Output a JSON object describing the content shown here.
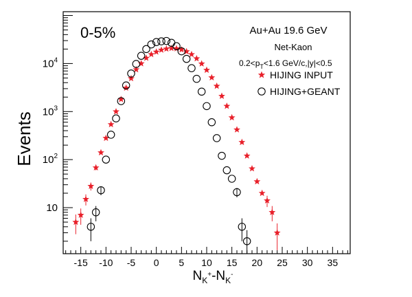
{
  "chart_data": {
    "type": "scatter",
    "title": "",
    "centrality": "0-5%",
    "annotations": {
      "system": "Au+Au 19.6 GeV",
      "particle": "Net-Kaon",
      "cuts_pre": "0.2<p",
      "cuts_sub": "T",
      "cuts_post": "<1.6 GeV/c,|y|<0.5"
    },
    "xlabel": {
      "base": "N",
      "sub1": "K",
      "sup1": "+",
      "mid": "-N",
      "sub2": "K",
      "sup2": "-"
    },
    "ylabel": "Events",
    "xlim": [
      -18.5,
      38.5
    ],
    "ylim": [
      1.1,
      120000
    ],
    "yscale": "log",
    "x_ticks": [
      -15,
      -10,
      -5,
      0,
      5,
      10,
      15,
      20,
      25,
      30,
      35
    ],
    "x_tick_labels": [
      "-15",
      "-10",
      "-5",
      "0",
      "5",
      "10",
      "15",
      "20",
      "25",
      "30",
      "35"
    ],
    "y_ticks": [
      {
        "value": 10,
        "base": "10",
        "exp": ""
      },
      {
        "value": 100,
        "base": "10",
        "exp": "2"
      },
      {
        "value": 1000,
        "base": "10",
        "exp": "3"
      },
      {
        "value": 10000,
        "base": "10",
        "exp": "4"
      }
    ],
    "legend_position": "top-right",
    "series": [
      {
        "name": "HIJING INPUT",
        "marker": "star",
        "color": "#e8202a",
        "points": [
          {
            "x": -16,
            "y": 5,
            "err": 2.2
          },
          {
            "x": -15,
            "y": 7,
            "err": 2.6
          },
          {
            "x": -14,
            "y": 15,
            "err": 3.9
          },
          {
            "x": -13,
            "y": 28,
            "err": 5.3
          },
          {
            "x": -12,
            "y": 68,
            "err": 8
          },
          {
            "x": -11,
            "y": 140
          },
          {
            "x": -10,
            "y": 280
          },
          {
            "x": -9,
            "y": 540
          },
          {
            "x": -8,
            "y": 1000
          },
          {
            "x": -7,
            "y": 1800
          },
          {
            "x": -6,
            "y": 3100
          },
          {
            "x": -5,
            "y": 4900
          },
          {
            "x": -4,
            "y": 7500
          },
          {
            "x": -3,
            "y": 10000
          },
          {
            "x": -2,
            "y": 13000
          },
          {
            "x": -1,
            "y": 15500
          },
          {
            "x": 0,
            "y": 17500
          },
          {
            "x": 1,
            "y": 19200
          },
          {
            "x": 2,
            "y": 20200
          },
          {
            "x": 3,
            "y": 20800
          },
          {
            "x": 4,
            "y": 20500
          },
          {
            "x": 5,
            "y": 19500
          },
          {
            "x": 6,
            "y": 17800
          },
          {
            "x": 7,
            "y": 15500
          },
          {
            "x": 8,
            "y": 12700
          },
          {
            "x": 9,
            "y": 9900
          },
          {
            "x": 10,
            "y": 7300
          },
          {
            "x": 11,
            "y": 5100
          },
          {
            "x": 12,
            "y": 3400
          },
          {
            "x": 13,
            "y": 2100
          },
          {
            "x": 14,
            "y": 1300
          },
          {
            "x": 15,
            "y": 750
          },
          {
            "x": 16,
            "y": 420
          },
          {
            "x": 17,
            "y": 230
          },
          {
            "x": 18,
            "y": 120
          },
          {
            "x": 19,
            "y": 65
          },
          {
            "x": 20,
            "y": 35
          },
          {
            "x": 21,
            "y": 20
          },
          {
            "x": 22,
            "y": 14,
            "err": 3.7
          },
          {
            "x": 23,
            "y": 8,
            "err": 2.8
          },
          {
            "x": 24,
            "y": 3,
            "err": 1.7
          }
        ]
      },
      {
        "name": "HIJING+GEANT",
        "marker": "open-circle",
        "color": "#000000",
        "points": [
          {
            "x": -13,
            "y": 4,
            "err": 2
          },
          {
            "x": -12,
            "y": 8,
            "err": 2.8
          },
          {
            "x": -11,
            "y": 23,
            "err": 4.8
          },
          {
            "x": -10,
            "y": 100
          },
          {
            "x": -9,
            "y": 330
          },
          {
            "x": -8,
            "y": 720
          },
          {
            "x": -7,
            "y": 1650
          },
          {
            "x": -6,
            "y": 3500
          },
          {
            "x": -5,
            "y": 6200
          },
          {
            "x": -4,
            "y": 9800
          },
          {
            "x": -3,
            "y": 14500
          },
          {
            "x": -2,
            "y": 20000
          },
          {
            "x": -1,
            "y": 25000
          },
          {
            "x": 0,
            "y": 28000
          },
          {
            "x": 1,
            "y": 29000
          },
          {
            "x": 2,
            "y": 29500
          },
          {
            "x": 3,
            "y": 27000
          },
          {
            "x": 4,
            "y": 23000
          },
          {
            "x": 5,
            "y": 18000
          },
          {
            "x": 6,
            "y": 12500
          },
          {
            "x": 7,
            "y": 8000
          },
          {
            "x": 8,
            "y": 4800
          },
          {
            "x": 9,
            "y": 2600
          },
          {
            "x": 10,
            "y": 1300
          },
          {
            "x": 11,
            "y": 600
          },
          {
            "x": 12,
            "y": 280
          },
          {
            "x": 13,
            "y": 120
          },
          {
            "x": 14,
            "y": 60
          },
          {
            "x": 15,
            "y": 40
          },
          {
            "x": 16,
            "y": 21,
            "err": 4.6
          },
          {
            "x": 17,
            "y": 4,
            "err": 2
          },
          {
            "x": 18,
            "y": 2,
            "err": 1.4
          }
        ]
      }
    ]
  }
}
